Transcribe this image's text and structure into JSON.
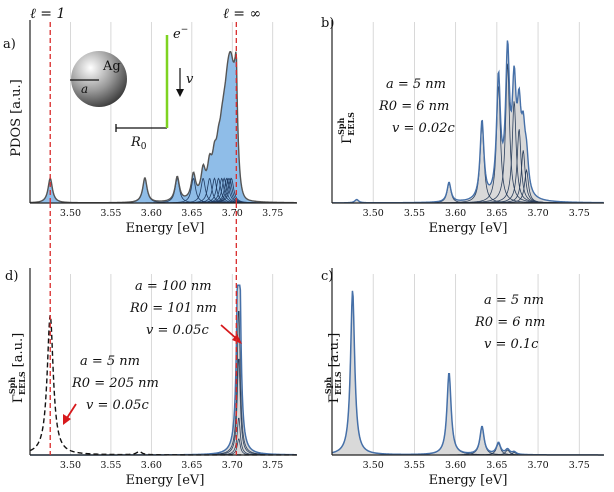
{
  "colors": {
    "fill_blue": "#8fbde8",
    "line_blue": "#4670a8",
    "fill_gray": "#d9d9d9",
    "line_dark": "#444444",
    "red_dash": "#d92b2b",
    "green_bar": "#7ed321",
    "arrow_red": "#d7191c"
  },
  "panels": {
    "a": {
      "letter": "a)",
      "ylabel": "PDOS [a.u.]",
      "xlabel": "Energy [eV]",
      "l1_label": "ℓ = 1",
      "linf_label": "ℓ = ∞",
      "ag_label": "Ag",
      "a_label": "a",
      "r0_label": "R",
      "r0_sub": "0",
      "e_label": "e",
      "e_sup": "−",
      "v_label": "v"
    },
    "b": {
      "letter": "b)",
      "ylabel_main": "Γ",
      "ylabel_sup": "Sph",
      "ylabel_sub": "EELS",
      "xlabel": "Energy [eV]",
      "params": [
        "a = 5 nm",
        "R0 = 6 nm",
        "v = 0.02c"
      ]
    },
    "c": {
      "letter": "c)",
      "ylabel_main": "Γ",
      "ylabel_sup": "Sph",
      "ylabel_sub": "EELS",
      "ylabel_unit": "[a.u.]",
      "xlabel": "Energy [eV]",
      "params": [
        "a = 5 nm",
        "R0 = 6 nm",
        "v = 0.1c"
      ]
    },
    "d": {
      "letter": "d)",
      "ylabel_main": "Γ",
      "ylabel_sup": "Sph",
      "ylabel_sub": "EELS",
      "ylabel_unit": "[a.u.]",
      "xlabel": "Energy [eV]",
      "params_top": [
        "a = 100 nm",
        "R0 = 101 nm",
        "v = 0.05c"
      ],
      "params_bottom": [
        "a = 5 nm",
        "R0 = 205 nm",
        "v = 0.05c"
      ]
    }
  },
  "chart_data": [
    {
      "panel": "a",
      "type": "area",
      "xlabel": "Energy [eV]",
      "ylabel": "PDOS [a.u.]",
      "xlim": [
        3.45,
        3.78
      ],
      "ylim": [
        0,
        1.05
      ],
      "xticks": [
        3.5,
        3.55,
        3.6,
        3.65,
        3.7,
        3.75
      ],
      "xtick_labels": [
        "3.50",
        "3.55",
        "3.60",
        "3.65",
        "3.70",
        "3.75"
      ],
      "modes": [
        {
          "l": 1,
          "energy": 3.475,
          "peak": 0.15
        },
        {
          "l": 2,
          "energy": 3.592,
          "peak": 0.15
        },
        {
          "l": 3,
          "energy": 3.632,
          "peak": 0.15
        },
        {
          "l": 4,
          "energy": 3.652,
          "peak": 0.15
        },
        {
          "l": 5,
          "energy": 3.664,
          "peak": 0.15
        },
        {
          "l": 6,
          "energy": 3.672,
          "peak": 0.15
        },
        {
          "l": 7,
          "energy": 3.678,
          "peak": 0.15
        },
        {
          "l": 8,
          "energy": 3.683,
          "peak": 0.15
        },
        {
          "l": 9,
          "energy": 3.687,
          "peak": 0.15
        },
        {
          "l": 10,
          "energy": 3.69,
          "peak": 0.15
        },
        {
          "l": 11,
          "energy": 3.693,
          "peak": 0.15
        },
        {
          "l": 12,
          "energy": 3.695,
          "peak": 0.15
        },
        {
          "l": 13,
          "energy": 3.697,
          "peak": 0.15
        },
        {
          "l": 14,
          "energy": 3.699,
          "peak": 0.15
        }
      ],
      "total_peak": {
        "energy": 3.705,
        "value": 1.0
      },
      "markers": [
        {
          "label": "ℓ = 1",
          "energy": 3.475
        },
        {
          "label": "ℓ = ∞",
          "energy": 3.705
        }
      ]
    },
    {
      "panel": "b",
      "type": "area",
      "xlabel": "Energy [eV]",
      "xlim": [
        3.45,
        3.78
      ],
      "ylim": [
        0,
        1.05
      ],
      "xticks": [
        3.5,
        3.55,
        3.6,
        3.65,
        3.7,
        3.75
      ],
      "xtick_labels": [
        "3.50",
        "3.55",
        "3.60",
        "3.65",
        "3.70",
        "3.75"
      ],
      "modes": [
        {
          "l": 1,
          "energy": 3.48,
          "peak": 0.02
        },
        {
          "l": 2,
          "energy": 3.592,
          "peak": 0.12
        },
        {
          "l": 3,
          "energy": 3.632,
          "peak": 0.48
        },
        {
          "l": 4,
          "energy": 3.652,
          "peak": 0.72
        },
        {
          "l": 5,
          "energy": 3.663,
          "peak": 0.85
        },
        {
          "l": 6,
          "energy": 3.671,
          "peak": 0.62
        },
        {
          "l": 7,
          "energy": 3.677,
          "peak": 0.45
        },
        {
          "l": 8,
          "energy": 3.682,
          "peak": 0.32
        },
        {
          "l": 9,
          "energy": 3.686,
          "peak": 0.2
        }
      ],
      "total_peak": {
        "energy": 3.672,
        "value": 1.0
      }
    },
    {
      "panel": "c",
      "type": "area",
      "xlabel": "Energy [eV]",
      "xlim": [
        3.45,
        3.78
      ],
      "ylim": [
        0,
        1.05
      ],
      "xticks": [
        3.5,
        3.55,
        3.6,
        3.65,
        3.7,
        3.75
      ],
      "xtick_labels": [
        "3.50",
        "3.55",
        "3.60",
        "3.65",
        "3.70",
        "3.75"
      ],
      "modes": [
        {
          "l": 1,
          "energy": 3.475,
          "peak": 1.0
        },
        {
          "l": 2,
          "energy": 3.592,
          "peak": 0.5
        },
        {
          "l": 3,
          "energy": 3.632,
          "peak": 0.17
        },
        {
          "l": 4,
          "energy": 3.652,
          "peak": 0.07
        },
        {
          "l": 5,
          "energy": 3.663,
          "peak": 0.03
        },
        {
          "l": 6,
          "energy": 3.671,
          "peak": 0.015
        }
      ]
    },
    {
      "panel": "d",
      "type": "area",
      "xlabel": "Energy [eV]",
      "xlim": [
        3.45,
        3.78
      ],
      "ylim": [
        0,
        1.05
      ],
      "xticks": [
        3.5,
        3.55,
        3.6,
        3.65,
        3.7,
        3.75
      ],
      "xtick_labels": [
        "3.50",
        "3.55",
        "3.60",
        "3.65",
        "3.70",
        "3.75"
      ],
      "modes": [
        {
          "l": 1,
          "energy": 3.708,
          "peak": 0.9
        },
        {
          "l": 2,
          "energy": 3.708,
          "peak": 0.6
        },
        {
          "l": 3,
          "energy": 3.708,
          "peak": 0.23
        },
        {
          "l": 4,
          "energy": 3.708,
          "peak": 0.1
        }
      ],
      "dashed": {
        "energy": 3.475,
        "peak": 0.85,
        "second_energy": 3.585,
        "second_peak": 0.02
      }
    }
  ]
}
